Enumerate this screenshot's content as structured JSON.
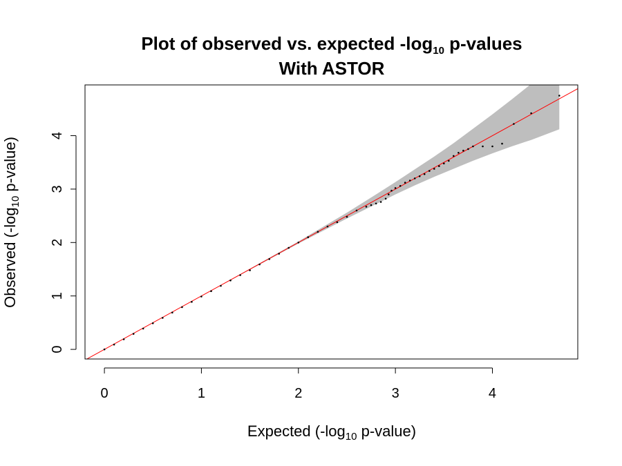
{
  "chart_data": {
    "type": "scatter",
    "title_line1_main": "Plot of observed vs. expected -log",
    "title_line1_sub": "10",
    "title_line1_tail": " p-values",
    "title_line2": "With ASTOR",
    "xlabel_main": "Expected (-log",
    "xlabel_sub": "10",
    "xlabel_tail": " p-value)",
    "ylabel_main": "Observed (-log",
    "ylabel_sub": "10",
    "ylabel_tail": " p-value)",
    "xlim": [
      -0.2,
      4.88
    ],
    "ylim": [
      -0.18,
      4.95
    ],
    "x_ticks": [
      0,
      1,
      2,
      3,
      4
    ],
    "y_ticks": [
      0,
      1,
      2,
      3,
      4
    ],
    "grid": false,
    "colors": {
      "points": "#000000",
      "reference_line": "#ff0000",
      "confidence_band": "#bebebe"
    },
    "reference_line": {
      "slope": 1,
      "intercept": 0
    },
    "confidence_band": {
      "x": [
        0,
        0.5,
        1.0,
        1.5,
        2.0,
        2.5,
        2.8,
        3.0,
        3.2,
        3.4,
        3.6,
        3.8,
        4.0,
        4.2,
        4.4,
        4.69
      ],
      "lower": [
        0,
        0.5,
        1.0,
        1.49,
        1.98,
        2.45,
        2.72,
        2.9,
        3.07,
        3.23,
        3.38,
        3.53,
        3.67,
        3.8,
        3.92,
        4.12
      ],
      "upper": [
        0,
        0.5,
        1.0,
        1.51,
        2.02,
        2.56,
        2.9,
        3.13,
        3.37,
        3.61,
        3.86,
        4.13,
        4.4,
        4.68,
        4.97,
        5.4
      ]
    },
    "points": {
      "x": [
        0.0,
        0.1,
        0.2,
        0.3,
        0.4,
        0.5,
        0.6,
        0.7,
        0.8,
        0.9,
        1.0,
        1.1,
        1.2,
        1.3,
        1.4,
        1.5,
        1.6,
        1.7,
        1.8,
        1.9,
        2.0,
        2.1,
        2.2,
        2.3,
        2.4,
        2.5,
        2.6,
        2.7,
        2.75,
        2.8,
        2.85,
        2.9,
        2.93,
        2.96,
        3.0,
        3.05,
        3.1,
        3.15,
        3.2,
        3.25,
        3.3,
        3.35,
        3.4,
        3.45,
        3.5,
        3.55,
        3.6,
        3.65,
        3.7,
        3.75,
        3.8,
        3.9,
        4.0,
        4.1,
        4.22,
        4.4,
        4.69
      ],
      "y": [
        0.0,
        0.09,
        0.19,
        0.29,
        0.39,
        0.49,
        0.59,
        0.69,
        0.79,
        0.89,
        0.99,
        1.09,
        1.19,
        1.29,
        1.39,
        1.48,
        1.59,
        1.69,
        1.79,
        1.9,
        2.0,
        2.1,
        2.2,
        2.3,
        2.38,
        2.48,
        2.6,
        2.67,
        2.7,
        2.73,
        2.76,
        2.82,
        2.9,
        2.97,
        3.02,
        3.06,
        3.12,
        3.16,
        3.2,
        3.24,
        3.28,
        3.34,
        3.38,
        3.43,
        3.48,
        3.53,
        3.62,
        3.68,
        3.72,
        3.75,
        3.8,
        3.8,
        3.8,
        3.85,
        4.22,
        4.42,
        4.75
      ]
    }
  }
}
